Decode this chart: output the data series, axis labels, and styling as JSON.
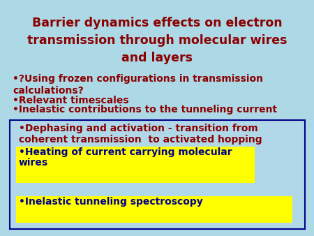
{
  "background_color": "#add8e6",
  "title_line1": "Barrier dynamics effects on electron",
  "title_line2": "transmission through molecular wires",
  "title_line3": "and layers",
  "title_color": "#8b0000",
  "title_fontsize": 12.5,
  "bullet1_line1": "•?Using frozen configurations in transmission",
  "bullet1_line2": "calculations?",
  "bullet2": "•Relevant timescales",
  "bullet3": "•Inelastic contributions to the tunneling current",
  "bullet_color": "#8b0000",
  "bullet_fontsize": 10,
  "box_bg": "#b0d8e8",
  "box_border": "#00008b",
  "item1_line1": "•Dephasing and activation - transition from",
  "item1_line2": "coherent transmission  to activated hopping",
  "item1_color": "#8b0000",
  "item2_line1": "•Heating of current carrying molecular",
  "item2_line2": "wires",
  "item2_color": "#00008b",
  "item2_bg": "#ffff00",
  "item3_text": "•Inelastic tunneling spectroscopy",
  "item3_color": "#00008b",
  "item3_bg": "#ffff00",
  "item_fontsize": 10
}
